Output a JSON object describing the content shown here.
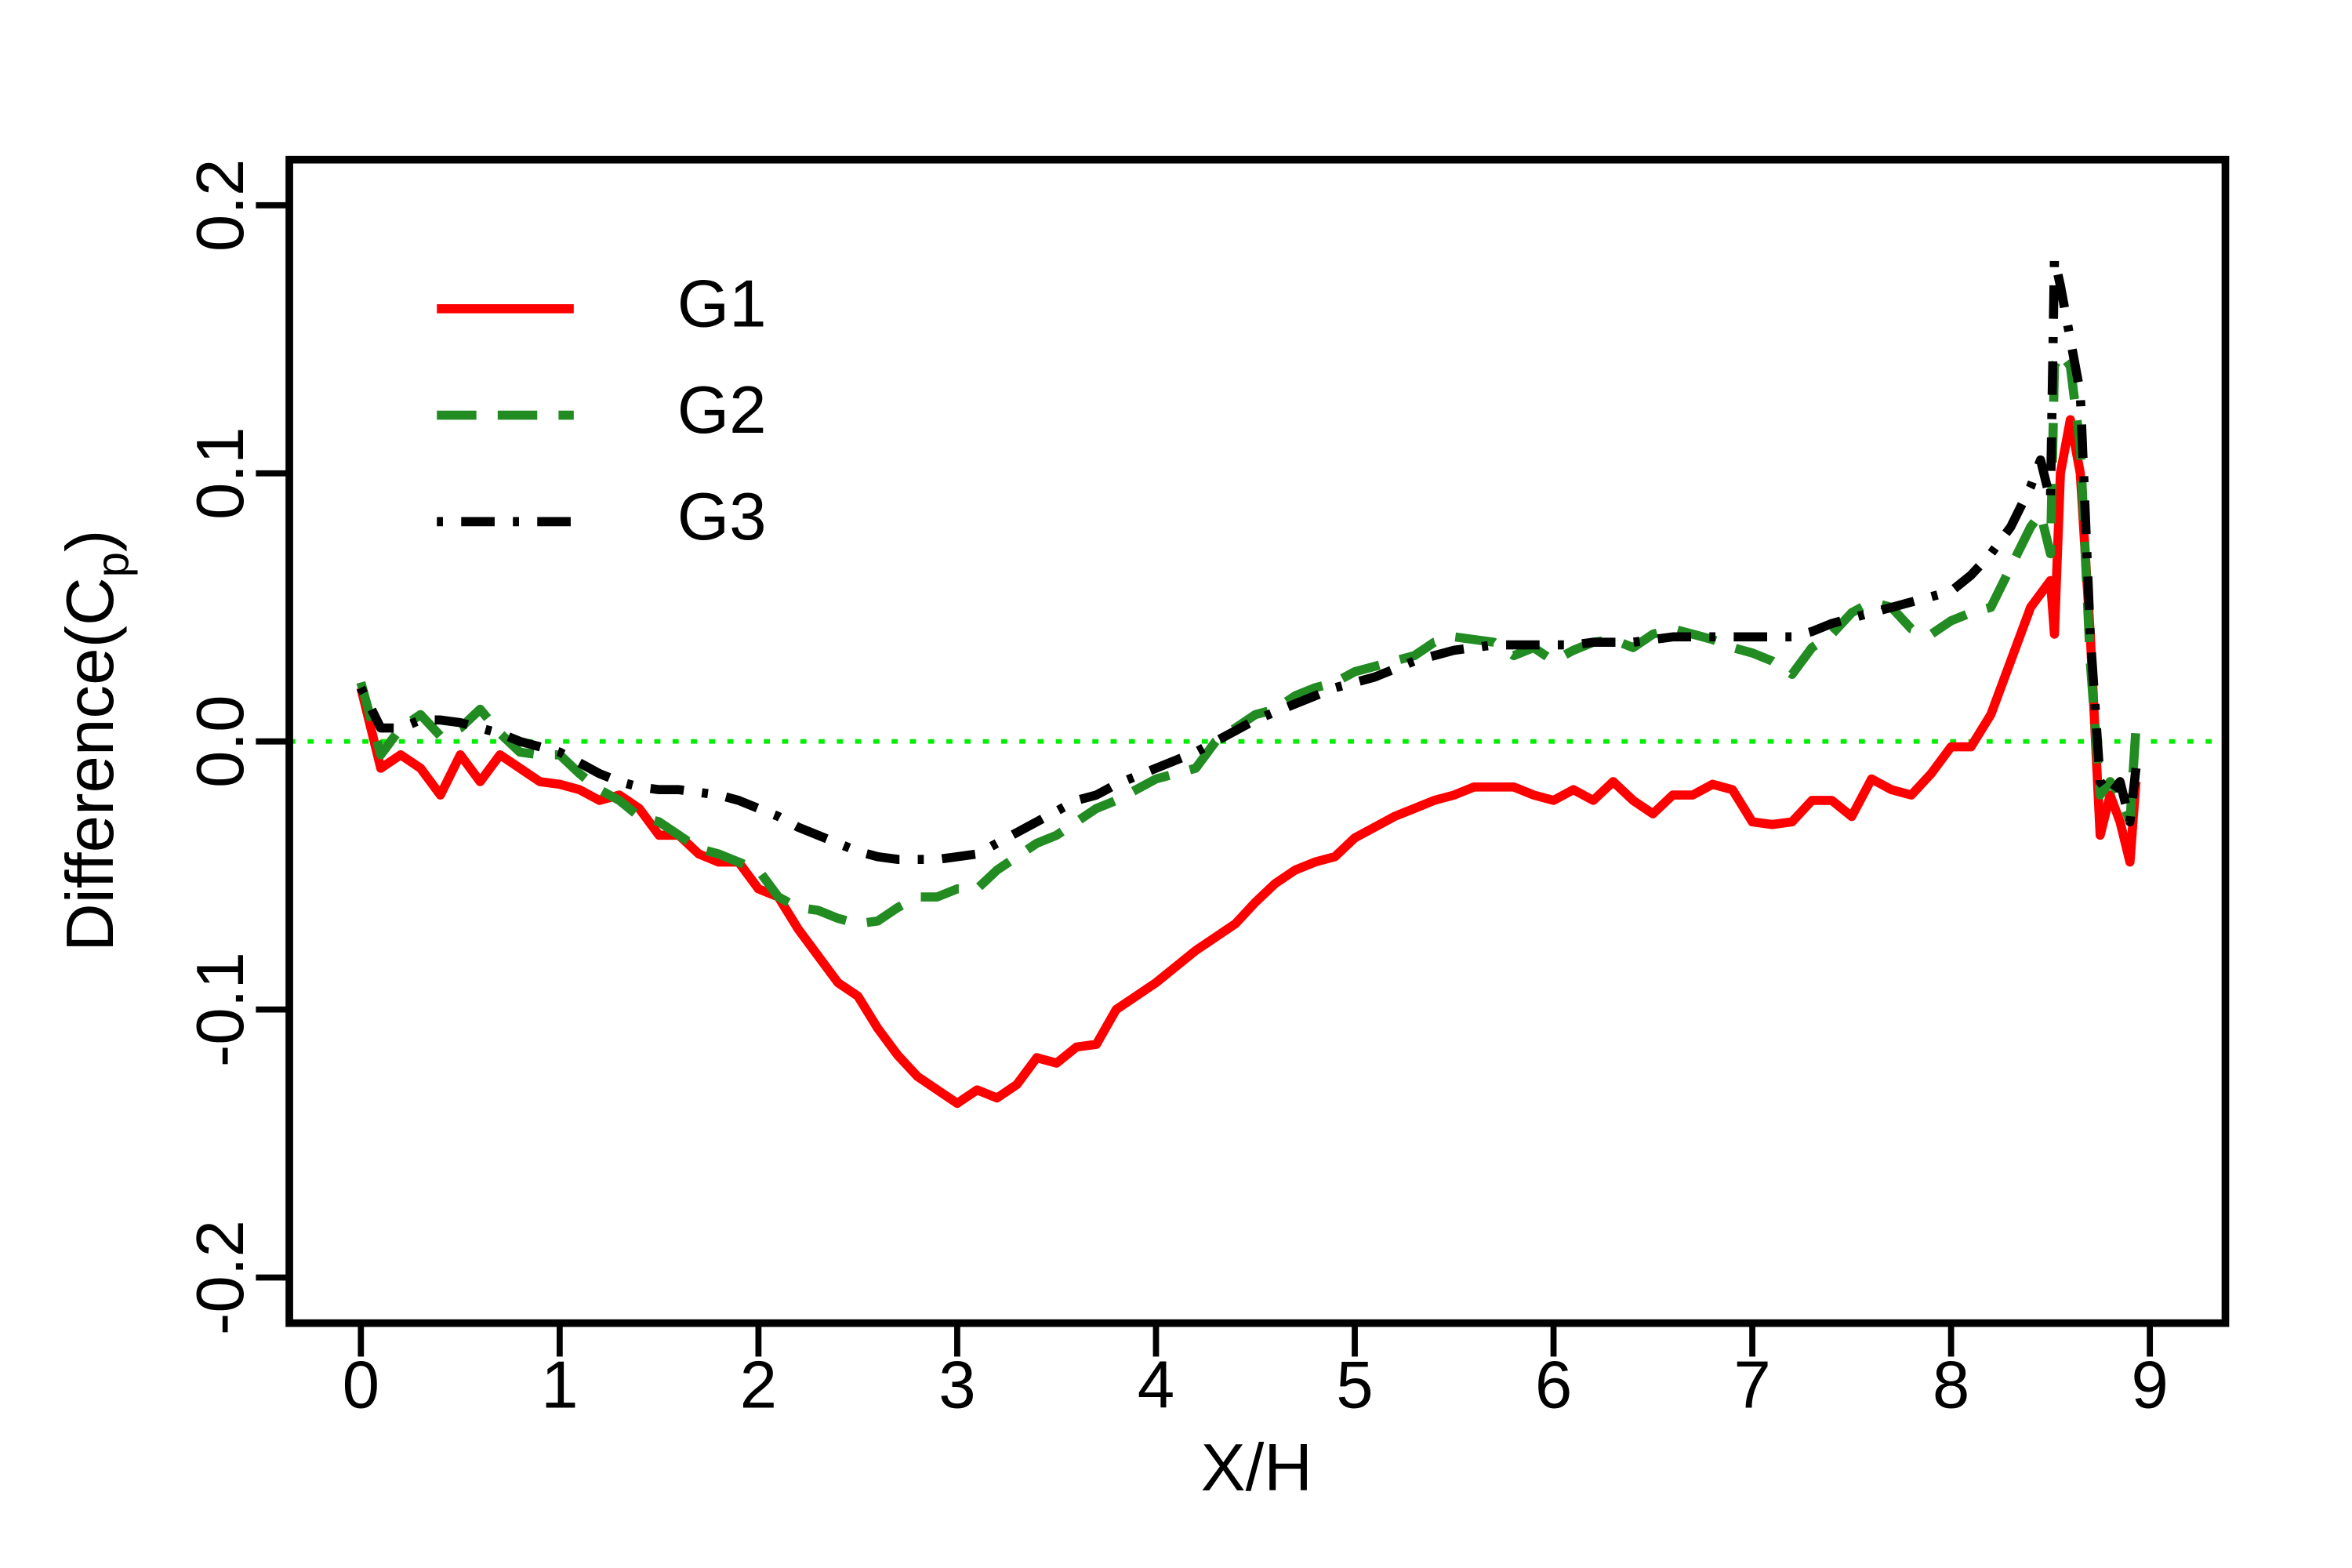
{
  "chart_data": {
    "type": "line",
    "xlabel": "X/H",
    "ylabel": [
      "Difference(C",
      "p",
      ")"
    ],
    "xlim": [
      -0.36,
      9.38
    ],
    "ylim": [
      -0.217,
      0.217
    ],
    "xticks": [
      0,
      1,
      2,
      3,
      4,
      5,
      6,
      7,
      8,
      9
    ],
    "yticks": [
      -0.2,
      -0.1,
      {
        "value": 0,
        "label": "0.0"
      },
      0.1,
      0.2
    ],
    "hline": {
      "value": 0,
      "color": "#00ee00"
    },
    "legend": "topleft",
    "x": [
      0,
      0.1,
      0.2,
      0.3,
      0.4,
      0.5,
      0.6,
      0.7,
      0.8,
      0.9,
      1,
      1.1,
      1.2,
      1.3,
      1.4,
      1.5,
      1.6,
      1.7,
      1.8,
      1.9,
      2,
      2.1,
      2.2,
      2.3,
      2.4,
      2.5,
      2.6,
      2.7,
      2.8,
      2.9,
      3,
      3.1,
      3.2,
      3.3,
      3.4,
      3.5,
      3.6,
      3.7,
      3.8,
      3.9,
      4,
      4.1,
      4.2,
      4.3,
      4.4,
      4.5,
      4.6,
      4.7,
      4.8,
      4.9,
      5,
      5.1,
      5.2,
      5.3,
      5.4,
      5.5,
      5.6,
      5.7,
      5.8,
      5.9,
      6,
      6.1,
      6.2,
      6.3,
      6.4,
      6.5,
      6.6,
      6.7,
      6.8,
      6.9,
      7,
      7.1,
      7.2,
      7.3,
      7.4,
      7.5,
      7.6,
      7.7,
      7.8,
      7.9,
      8,
      8.1,
      8.2,
      8.3,
      8.4,
      8.45,
      8.5,
      8.52,
      8.55,
      8.6,
      8.65,
      8.7,
      8.75,
      8.8,
      8.85,
      8.9,
      8.93
    ],
    "series": [
      {
        "name": "G1",
        "color": "#ff0000",
        "dash": "solid",
        "values": [
          0.02,
          -0.01,
          -0.005,
          -0.01,
          -0.02,
          -0.005,
          -0.015,
          -0.005,
          -0.01,
          -0.015,
          -0.016,
          -0.018,
          -0.022,
          -0.02,
          -0.025,
          -0.035,
          -0.035,
          -0.042,
          -0.045,
          -0.045,
          -0.055,
          -0.058,
          -0.07,
          -0.08,
          -0.09,
          -0.095,
          -0.107,
          -0.117,
          -0.125,
          -0.13,
          -0.135,
          -0.13,
          -0.133,
          -0.128,
          -0.118,
          -0.12,
          -0.114,
          -0.113,
          -0.1,
          -0.095,
          -0.09,
          -0.084,
          -0.078,
          -0.073,
          -0.068,
          -0.06,
          -0.053,
          -0.048,
          -0.045,
          -0.043,
          -0.036,
          -0.032,
          -0.028,
          -0.025,
          -0.022,
          -0.02,
          -0.017,
          -0.017,
          -0.017,
          -0.02,
          -0.022,
          -0.018,
          -0.022,
          -0.015,
          -0.022,
          -0.027,
          -0.02,
          -0.02,
          -0.016,
          -0.018,
          -0.03,
          -0.031,
          -0.03,
          -0.022,
          -0.022,
          -0.028,
          -0.014,
          -0.018,
          -0.02,
          -0.012,
          -0.002,
          -0.002,
          0.01,
          0.03,
          0.05,
          0.055,
          0.06,
          0.04,
          0.1,
          0.12,
          0.1,
          0.04,
          -0.035,
          -0.02,
          -0.03,
          -0.045,
          -0.015
        ]
      },
      {
        "name": "G2",
        "color": "#228b22",
        "dash": "dashed",
        "values": [
          0.022,
          -0.005,
          0.005,
          0.01,
          0.002,
          0.005,
          0.012,
          0.003,
          -0.004,
          -0.005,
          -0.005,
          -0.012,
          -0.018,
          -0.022,
          -0.028,
          -0.03,
          -0.035,
          -0.04,
          -0.042,
          -0.045,
          -0.048,
          -0.058,
          -0.062,
          -0.063,
          -0.066,
          -0.068,
          -0.067,
          -0.062,
          -0.058,
          -0.058,
          -0.055,
          -0.055,
          -0.048,
          -0.043,
          -0.038,
          -0.035,
          -0.03,
          -0.025,
          -0.022,
          -0.018,
          -0.014,
          -0.012,
          -0.01,
          0,
          0.005,
          0.01,
          0.012,
          0.017,
          0.02,
          0.022,
          0.026,
          0.028,
          0.03,
          0.032,
          0.037,
          0.039,
          0.038,
          0.037,
          0.032,
          0.035,
          0.03,
          0.034,
          0.037,
          0.038,
          0.035,
          0.04,
          0.042,
          0.04,
          0.038,
          0.035,
          0.033,
          0.03,
          0.025,
          0.035,
          0.04,
          0.048,
          0.052,
          0.05,
          0.042,
          0.04,
          0.045,
          0.048,
          0.05,
          0.065,
          0.08,
          0.085,
          0.07,
          0.14,
          0.145,
          0.14,
          0.11,
          0.03,
          -0.02,
          -0.015,
          -0.02,
          -0.03,
          0.005
        ]
      },
      {
        "name": "G3",
        "color": "#000000",
        "dash": "dotdash",
        "values": [
          0.02,
          0.005,
          0.005,
          0.008,
          0.008,
          0.007,
          0.005,
          0.003,
          0,
          -0.002,
          -0.004,
          -0.008,
          -0.012,
          -0.015,
          -0.017,
          -0.018,
          -0.018,
          -0.019,
          -0.02,
          -0.022,
          -0.025,
          -0.028,
          -0.032,
          -0.035,
          -0.038,
          -0.041,
          -0.043,
          -0.044,
          -0.044,
          -0.044,
          -0.043,
          -0.042,
          -0.038,
          -0.034,
          -0.03,
          -0.026,
          -0.022,
          -0.02,
          -0.016,
          -0.013,
          -0.01,
          -0.007,
          -0.004,
          0,
          0.004,
          0.008,
          0.011,
          0.014,
          0.017,
          0.02,
          0.022,
          0.024,
          0.027,
          0.03,
          0.032,
          0.034,
          0.035,
          0.036,
          0.036,
          0.036,
          0.036,
          0.036,
          0.037,
          0.037,
          0.037,
          0.038,
          0.039,
          0.039,
          0.039,
          0.039,
          0.039,
          0.039,
          0.039,
          0.041,
          0.044,
          0.046,
          0.048,
          0.05,
          0.052,
          0.054,
          0.056,
          0.062,
          0.07,
          0.08,
          0.095,
          0.105,
          0.09,
          0.18,
          0.17,
          0.15,
          0.13,
          0.04,
          -0.015,
          -0.02,
          -0.015,
          -0.03,
          -0.01
        ]
      }
    ]
  }
}
